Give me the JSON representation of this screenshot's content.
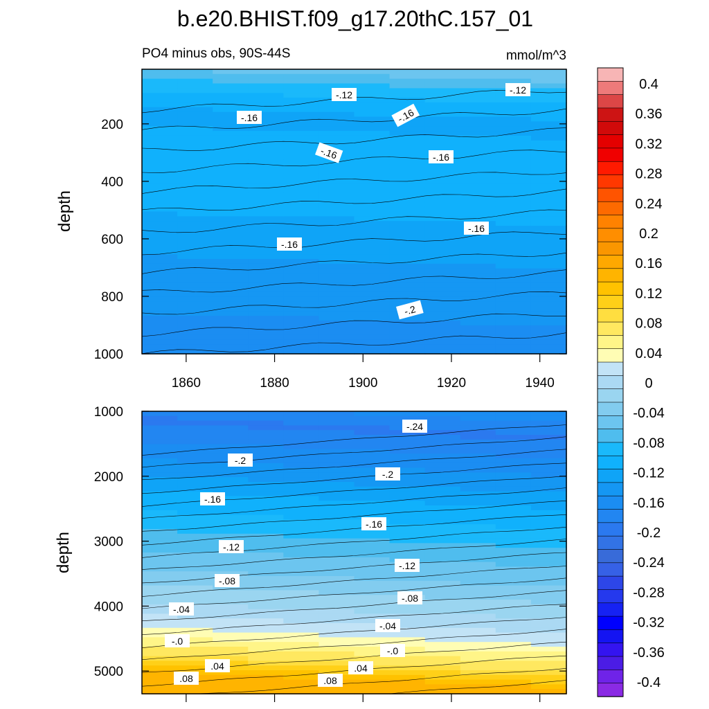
{
  "chart_data": [
    {
      "type": "contour",
      "title": "b.e20.BHIST.f09_g17.20thC.157_01",
      "subtitle_left": "PO4 minus obs, 90S-44S",
      "subtitle_right": "mmol/m^3",
      "ylabel": "depth",
      "xlim": [
        1850,
        1946
      ],
      "ylim": [
        1000,
        10
      ],
      "y_reversed": true,
      "xticks": [
        "1860",
        "1880",
        "1900",
        "1920",
        "1940"
      ],
      "yticks": [
        "200",
        "400",
        "600",
        "800",
        "1000"
      ],
      "contour_labels": [
        "-.12",
        "-.12",
        "-.16",
        "-.16",
        "-.16",
        "-.16",
        "-.16",
        "-.16",
        "-.2"
      ],
      "field_by_depth": [
        [
          20,
          -0.08
        ],
        [
          100,
          -0.13
        ],
        [
          200,
          -0.165
        ],
        [
          450,
          -0.14
        ],
        [
          600,
          -0.17
        ],
        [
          1000,
          -0.21
        ]
      ]
    },
    {
      "type": "contour",
      "ylabel": "depth",
      "xlim": [
        1850,
        1946
      ],
      "ylim": [
        5350,
        1000
      ],
      "y_reversed": true,
      "yticks": [
        "1000",
        "2000",
        "3000",
        "4000",
        "5000"
      ],
      "contour_labels": [
        "-.24",
        "-.2",
        "-.2",
        "-.16",
        "-.16",
        "-.12",
        "-.12",
        "-.08",
        "-.08",
        "-.04",
        "-.04",
        "-.0",
        "-.0",
        ".04",
        ".04",
        ".08",
        ".08"
      ],
      "field_by_depth": [
        [
          1000,
          -0.2
        ],
        [
          1400,
          -0.245
        ],
        [
          2000,
          -0.2
        ],
        [
          2500,
          -0.16
        ],
        [
          3100,
          -0.12
        ],
        [
          3700,
          -0.08
        ],
        [
          4200,
          -0.04
        ],
        [
          4600,
          0.0
        ],
        [
          5000,
          0.06
        ],
        [
          5350,
          0.14
        ]
      ]
    }
  ],
  "colorbar": {
    "ticks": [
      "0.4",
      "0.36",
      "0.32",
      "0.28",
      "0.24",
      "0.2",
      "0.16",
      "0.12",
      "0.08",
      "0.04",
      "0",
      "-0.04",
      "-0.08",
      "-0.12",
      "-0.16",
      "-0.2",
      "-0.24",
      "-0.28",
      "-0.32",
      "-0.36",
      "-0.4"
    ],
    "colors_top_to_bottom": [
      "#f7b5b5",
      "#ee7a7a",
      "#dc4646",
      "#cd1414",
      "#d10a0a",
      "#e40000",
      "#f00000",
      "#ff1a00",
      "#ff3800",
      "#ff5400",
      "#fd6a00",
      "#ff8200",
      "#ff8e00",
      "#fa9600",
      "#ffa800",
      "#ffb400",
      "#ffc200",
      "#ffd018",
      "#ffde40",
      "#ffe860",
      "#fff588",
      "#fffdb4",
      "#c2e3f6",
      "#abd9f3",
      "#9ad5f0",
      "#82ccef",
      "#6cc5ef",
      "#4fbdee",
      "#1ab9fb",
      "#10b1fc",
      "#0fa4f7",
      "#1597f3",
      "#1b8df2",
      "#2286f1",
      "#2b79ef",
      "#3273e6",
      "#386bd9",
      "#3661e6",
      "#2d46e8",
      "#2539ed",
      "#1622f3",
      "#0000fe",
      "#1414f2",
      "#3414f0",
      "#4b1ce5",
      "#6f23e8",
      "#8a2ae4"
    ]
  }
}
